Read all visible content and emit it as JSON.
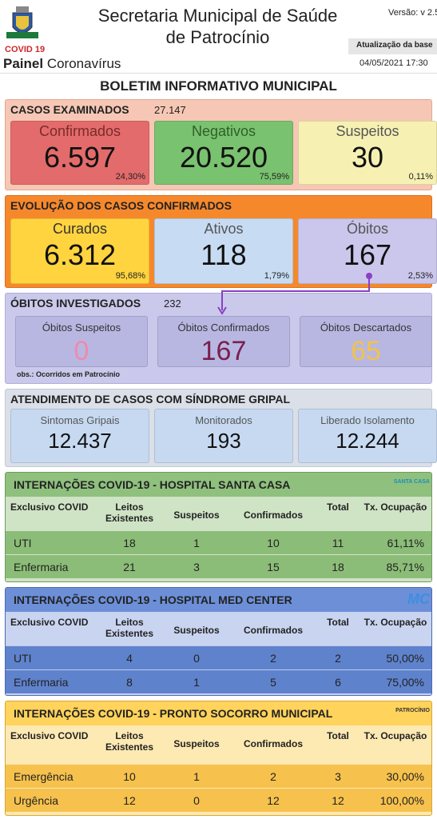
{
  "header": {
    "title_lines": [
      "Secretaria Municipal de Saúde",
      "de Patrocínio"
    ],
    "version": "Versão: v 2.5",
    "covid_label": "COVID 19",
    "panel": "Painel",
    "panel_subtitle": "Coronavírus",
    "update_label": "Atualização da base",
    "update_date": "04/05/2021 17:30"
  },
  "bulletin_title": "BOLETIM INFORMATIVO MUNICIPAL",
  "cases_examined": {
    "title": "CASOS EXAMINADOS",
    "total": "27.147",
    "cards": [
      {
        "label": "Confirmados",
        "value": "6.597",
        "percent": "24,30%"
      },
      {
        "label": "Negativos",
        "value": "20.520",
        "percent": "75,59%"
      },
      {
        "label": "Suspeitos",
        "value": "30",
        "percent": "0,11%"
      }
    ]
  },
  "confirmed_evolution": {
    "title": "EVOLUÇÃO DOS CASOS CONFIRMADOS",
    "cards": [
      {
        "label": "Curados",
        "value": "6.312",
        "percent": "95,68%"
      },
      {
        "label": "Ativos",
        "value": "118",
        "percent": "1,79%"
      },
      {
        "label": "Óbitos",
        "value": "167",
        "percent": "2,53%"
      }
    ]
  },
  "deaths_investigated": {
    "title": "ÓBITOS INVESTIGADOS",
    "total": "232",
    "cards": [
      {
        "label": "Óbitos Suspeitos",
        "value": "0"
      },
      {
        "label": "Óbitos Confirmados",
        "value": "167"
      },
      {
        "label": "Óbitos Descartados",
        "value": "65"
      }
    ],
    "note": "obs.: Ocorridos em Patrocínio"
  },
  "flu_syndrome": {
    "title": "ATENDIMENTO DE CASOS COM SÍNDROME GRIPAL",
    "cards": [
      {
        "label": "Sintomas Gripais",
        "value": "12.437"
      },
      {
        "label": "Monitorados",
        "value": "193"
      },
      {
        "label": "Liberado Isolamento",
        "value": "12.244"
      }
    ]
  },
  "hospitals": [
    {
      "title": "INTERNAÇÕES COVID-19 - HOSPITAL SANTA CASA",
      "logo": "SANTA CASA",
      "header": [
        "Exclusivo COVID",
        "Leitos Existentes",
        "Suspeitos",
        "Confirmados",
        "Total",
        "Tx. Ocupação"
      ],
      "rows": [
        [
          "UTI",
          "18",
          "1",
          "10",
          "11",
          "61,11%"
        ],
        [
          "Enfermaria",
          "21",
          "3",
          "15",
          "18",
          "85,71%"
        ]
      ]
    },
    {
      "title": "INTERNAÇÕES COVID-19 - HOSPITAL MED CENTER",
      "logo": "MC",
      "header": [
        "Exclusivo COVID",
        "Leitos Existentes",
        "Suspeitos",
        "Confirmados",
        "Total",
        "Tx. Ocupação"
      ],
      "rows": [
        [
          "UTI",
          "4",
          "0",
          "2",
          "2",
          "50,00%"
        ],
        [
          "Enfermaria",
          "8",
          "1",
          "5",
          "6",
          "75,00%"
        ]
      ]
    },
    {
      "title": "INTERNAÇÕES COVID-19 - PRONTO SOCORRO MUNICIPAL",
      "logo": "PATROCÍNIO",
      "header": [
        "Exclusivo COVID",
        "Leitos Existentes",
        "Suspeitos",
        "Confirmados",
        "Total",
        "Tx. Ocupação"
      ],
      "rows": [
        [
          "Emergência",
          "10",
          "1",
          "2",
          "3",
          "30,00%"
        ],
        [
          "Urgência",
          "12",
          "0",
          "12",
          "12",
          "100,00%"
        ]
      ]
    }
  ]
}
